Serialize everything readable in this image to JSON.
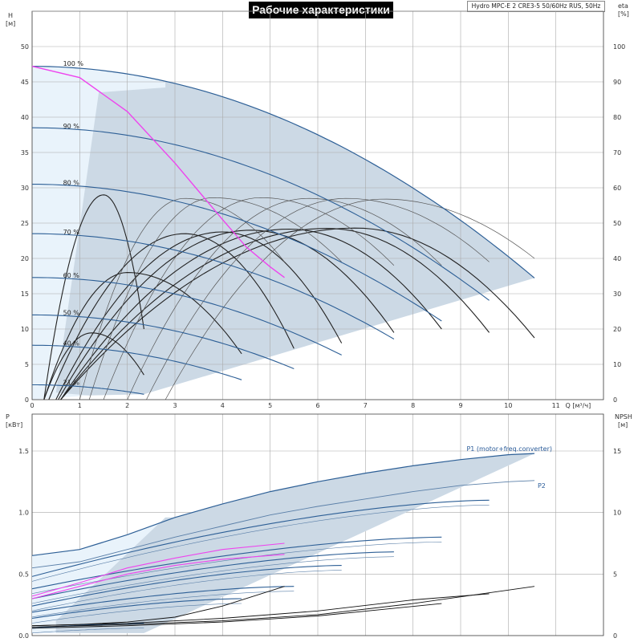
{
  "title": "Рабочие характеристики",
  "subtitle": "Hydro MPC-E 2 CRE3-5 50/60Hz RUS, 50Hz",
  "colors": {
    "envelope_dark": "#ccd9e5",
    "envelope_light": "#e9f3fb",
    "curve_blue": "#2d5f96",
    "curve_thin": "#5a7fa8",
    "system_curve": "#ee44ee",
    "efficiency": "#222222",
    "grid": "#a9a9a9"
  },
  "chart_data": [
    {
      "type": "line",
      "name": "head",
      "xlabel": "Q [м³/ч]",
      "ylabel_left": [
        "H",
        "[м]"
      ],
      "ylabel_right": [
        "eta",
        "[%]"
      ],
      "xlim": [
        0,
        12
      ],
      "ylim": [
        0,
        55
      ],
      "y2lim": [
        0,
        110
      ],
      "xticks": [
        "0",
        "1",
        "2",
        "3",
        "4",
        "5",
        "6",
        "7",
        "8",
        "9",
        "10",
        "11"
      ],
      "yticks": [
        "0",
        "5",
        "10",
        "15",
        "20",
        "25",
        "30",
        "35",
        "40",
        "45",
        "50"
      ],
      "y2ticks": [
        "0",
        "10",
        "20",
        "30",
        "40",
        "50",
        "60",
        "70",
        "80",
        "90",
        "100"
      ],
      "grid": true,
      "speed_labels": [
        {
          "text": "100 %",
          "x": 0.65,
          "y": 47.4
        },
        {
          "text": "90 %",
          "x": 0.65,
          "y": 38.5
        },
        {
          "text": "80 %",
          "x": 0.65,
          "y": 30.5
        },
        {
          "text": "70 %",
          "x": 0.65,
          "y": 23.5
        },
        {
          "text": "60 %",
          "x": 0.65,
          "y": 17.4
        },
        {
          "text": "50 %",
          "x": 0.65,
          "y": 12.1
        },
        {
          "text": "40 %",
          "x": 0.65,
          "y": 7.8
        },
        {
          "text": "21 %",
          "x": 0.65,
          "y": 2.2
        }
      ],
      "qh_curves": [
        {
          "speed": 1.0,
          "qmax": 10.55,
          "h0": 47.2,
          "k": 0.266
        },
        {
          "speed": 0.9,
          "qmax": 9.6,
          "h0": 38.5,
          "k": 0.266
        },
        {
          "speed": 0.8,
          "qmax": 8.6,
          "h0": 30.5,
          "k": 0.266
        },
        {
          "speed": 0.7,
          "qmax": 7.6,
          "h0": 23.5,
          "k": 0.266
        },
        {
          "speed": 0.6,
          "qmax": 6.5,
          "h0": 17.3,
          "k": 0.266
        },
        {
          "speed": 0.5,
          "qmax": 5.5,
          "h0": 12.0,
          "k": 0.266
        },
        {
          "speed": 0.4,
          "qmax": 4.4,
          "h0": 7.7,
          "k": 0.266
        },
        {
          "speed": 0.21,
          "qmax": 2.35,
          "h0": 2.1,
          "k": 0.266
        }
      ],
      "system_curve": {
        "x": [
          0,
          1,
          2,
          3,
          4,
          4.5,
          5,
          5.3
        ],
        "y": [
          47.2,
          45.6,
          40.8,
          33.5,
          25.5,
          21.6,
          18.8,
          17.3
        ]
      },
      "efficiency_curves": [
        {
          "x0": 0.25,
          "x1": 2.35,
          "peak": 18.9,
          "peak_x": 1.25,
          "y_end": 7.0
        },
        {
          "x0": 0.25,
          "x1": 4.4,
          "peak": 36.0,
          "peak_x": 2.0,
          "y_end": 13.0
        },
        {
          "x0": 0.25,
          "x1": 2.35,
          "peak": 58.0,
          "peak_x": 1.5,
          "y_end": 20.0
        },
        {
          "x0": 0.35,
          "x1": 5.5,
          "peak": 47.0,
          "peak_x": 3.2,
          "y_end": 14.5
        },
        {
          "x0": 0.5,
          "x1": 6.5,
          "peak": 47.5,
          "peak_x": 4.0,
          "y_end": 16.0
        },
        {
          "x0": 0.55,
          "x1": 7.6,
          "peak": 48.0,
          "peak_x": 4.6,
          "y_end": 19.0
        },
        {
          "x0": 0.6,
          "x1": 8.6,
          "peak": 48.3,
          "peak_x": 5.4,
          "y_end": 20.0
        },
        {
          "x0": 0.6,
          "x1": 9.6,
          "peak": 48.5,
          "peak_x": 6.2,
          "y_end": 19.0
        },
        {
          "x0": 0.6,
          "x1": 10.55,
          "peak": 48.6,
          "peak_x": 6.8,
          "y_end": 17.5
        },
        {
          "x0": 1.0,
          "x1": 5.3,
          "peak": 57.0,
          "peak_x": 3.2,
          "y_end": 39.0
        },
        {
          "x0": 1.2,
          "x1": 6.5,
          "peak": 57.2,
          "peak_x": 3.8,
          "y_end": 39.0
        },
        {
          "x0": 1.5,
          "x1": 7.6,
          "peak": 57.2,
          "peak_x": 4.8,
          "y_end": 38.0
        },
        {
          "x0": 2.0,
          "x1": 8.6,
          "peak": 57.0,
          "peak_x": 5.8,
          "y_end": 38.0
        },
        {
          "x0": 2.4,
          "x1": 9.6,
          "peak": 57.0,
          "peak_x": 6.6,
          "y_end": 39.0
        },
        {
          "x0": 2.8,
          "x1": 10.55,
          "peak": 56.8,
          "peak_x": 7.4,
          "y_end": 40.0
        }
      ]
    },
    {
      "type": "line",
      "name": "power",
      "xlim": [
        0,
        12
      ],
      "ylim": [
        0,
        1.8
      ],
      "y2lim": [
        0,
        18
      ],
      "ylabel_left": [
        "P",
        "[кВт]"
      ],
      "ylabel_right": [
        "NPSH",
        "[м]"
      ],
      "yticks": [
        "0.0",
        "0.5",
        "1.0",
        "1.5"
      ],
      "y2ticks": [
        "0",
        "5",
        "10",
        "15"
      ],
      "grid": true,
      "series_labels": [
        {
          "text": "P1 (motor+freq.converter)",
          "x": 9.8,
          "y": 1.5
        },
        {
          "text": "P2",
          "x": 10.55,
          "y": 1.2
        }
      ],
      "p1_curve": {
        "x": [
          0,
          1,
          2,
          3,
          4,
          5,
          6,
          7,
          8,
          9,
          10,
          10.55
        ],
        "y": [
          0.65,
          0.7,
          0.82,
          0.96,
          1.07,
          1.17,
          1.25,
          1.32,
          1.38,
          1.43,
          1.47,
          1.48
        ]
      },
      "p2_curve": {
        "x": [
          0,
          1,
          2,
          3,
          4,
          5,
          6,
          7,
          8,
          9,
          10,
          10.55
        ],
        "y": [
          0.55,
          0.6,
          0.7,
          0.8,
          0.89,
          0.98,
          1.05,
          1.11,
          1.17,
          1.22,
          1.25,
          1.26
        ]
      },
      "speed_curves": [
        {
          "qmax": 9.6,
          "p0": 0.48,
          "p1": 1.1
        },
        {
          "qmax": 8.6,
          "p0": 0.38,
          "p1": 0.8
        },
        {
          "qmax": 7.6,
          "p0": 0.3,
          "p1": 0.68
        },
        {
          "qmax": 6.5,
          "p0": 0.24,
          "p1": 0.57
        },
        {
          "qmax": 5.5,
          "p0": 0.19,
          "p1": 0.4
        },
        {
          "qmax": 4.4,
          "p0": 0.14,
          "p1": 0.3
        },
        {
          "qmax": 2.35,
          "p0": 0.06,
          "p1": 0.1
        }
      ],
      "system_power": [
        {
          "x": [
            0,
            1,
            2,
            3,
            4,
            5.3
          ],
          "y": [
            0.32,
            0.43,
            0.55,
            0.63,
            0.7,
            0.75
          ]
        },
        {
          "x": [
            0,
            1,
            2,
            3,
            4,
            5.3
          ],
          "y": [
            0.3,
            0.4,
            0.5,
            0.57,
            0.62,
            0.66
          ]
        }
      ],
      "npsh_curves": [
        {
          "x": [
            0,
            1,
            2,
            3,
            4,
            5.3
          ],
          "y": [
            0.8,
            0.9,
            1.1,
            1.5,
            2.4,
            4.0
          ]
        },
        {
          "x": [
            0,
            2,
            4,
            6,
            8,
            9.6
          ],
          "y": [
            0.8,
            1.0,
            1.4,
            2.0,
            2.9,
            3.4
          ]
        },
        {
          "x": [
            0,
            2,
            4,
            6,
            8,
            10.55
          ],
          "y": [
            0.7,
            0.9,
            1.2,
            1.7,
            2.6,
            4.0
          ]
        },
        {
          "x": [
            0,
            2,
            4,
            6,
            8.6
          ],
          "y": [
            0.6,
            0.8,
            1.1,
            1.6,
            2.6
          ]
        }
      ]
    }
  ]
}
